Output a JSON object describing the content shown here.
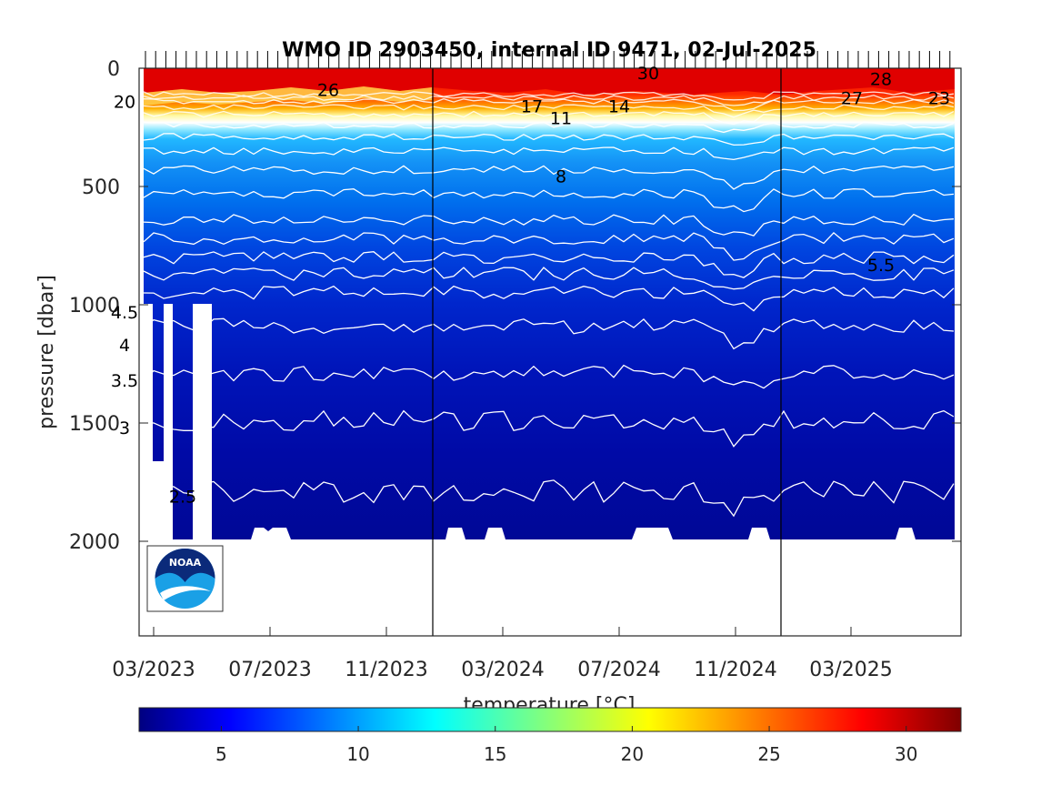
{
  "chart_data": {
    "type": "heatmap",
    "title": "WMO ID 2903450, internal ID 9471, 02-Jul-2025",
    "xlabel": "",
    "ylabel": "pressure [dbar]",
    "colorbar_label": "temperature [°C]",
    "x_ticks": [
      "03/2023",
      "07/2023",
      "11/2023",
      "03/2024",
      "07/2024",
      "11/2024",
      "03/2025"
    ],
    "y_ticks": [
      "0",
      "500",
      "1000",
      "1500",
      "2000"
    ],
    "ylim": [
      2400,
      0
    ],
    "y_reversed": true,
    "colorbar": {
      "ticks": [
        "5",
        "10",
        "15",
        "20",
        "25",
        "30"
      ],
      "range": [
        2,
        32
      ],
      "colormap": "jet"
    },
    "year_boundaries": [
      "01/2024",
      "01/2025"
    ],
    "contour_levels": [
      2.5,
      3,
      3.5,
      4,
      4.5,
      5,
      5.5,
      6,
      7,
      8,
      9,
      10,
      11,
      12,
      14,
      17,
      20,
      23,
      26,
      27,
      28,
      30
    ],
    "contour_labels": [
      {
        "text": "20",
        "date": "02/2023",
        "pressure": 140
      },
      {
        "text": "26",
        "date": "09/2023",
        "pressure": 90
      },
      {
        "text": "30",
        "date": "08/2024",
        "pressure": 20
      },
      {
        "text": "17",
        "date": "04/2024",
        "pressure": 160
      },
      {
        "text": "11",
        "date": "05/2024",
        "pressure": 210
      },
      {
        "text": "14",
        "date": "07/2024",
        "pressure": 160
      },
      {
        "text": "28",
        "date": "04/2025",
        "pressure": 45
      },
      {
        "text": "27",
        "date": "03/2025",
        "pressure": 125
      },
      {
        "text": "23",
        "date": "06/2025",
        "pressure": 125
      },
      {
        "text": "8",
        "date": "05/2024",
        "pressure": 455
      },
      {
        "text": "5.5",
        "date": "04/2025",
        "pressure": 830
      },
      {
        "text": "4.5",
        "date": "02/2023",
        "pressure": 1030
      },
      {
        "text": "4",
        "date": "02/2023",
        "pressure": 1170
      },
      {
        "text": "3.5",
        "date": "02/2023",
        "pressure": 1320
      },
      {
        "text": "3",
        "date": "02/2023",
        "pressure": 1520
      },
      {
        "text": "2.5",
        "date": "04/2023",
        "pressure": 1810
      }
    ],
    "profile_depth_dbar": 2000
  },
  "logo": {
    "text": "NOAA"
  }
}
